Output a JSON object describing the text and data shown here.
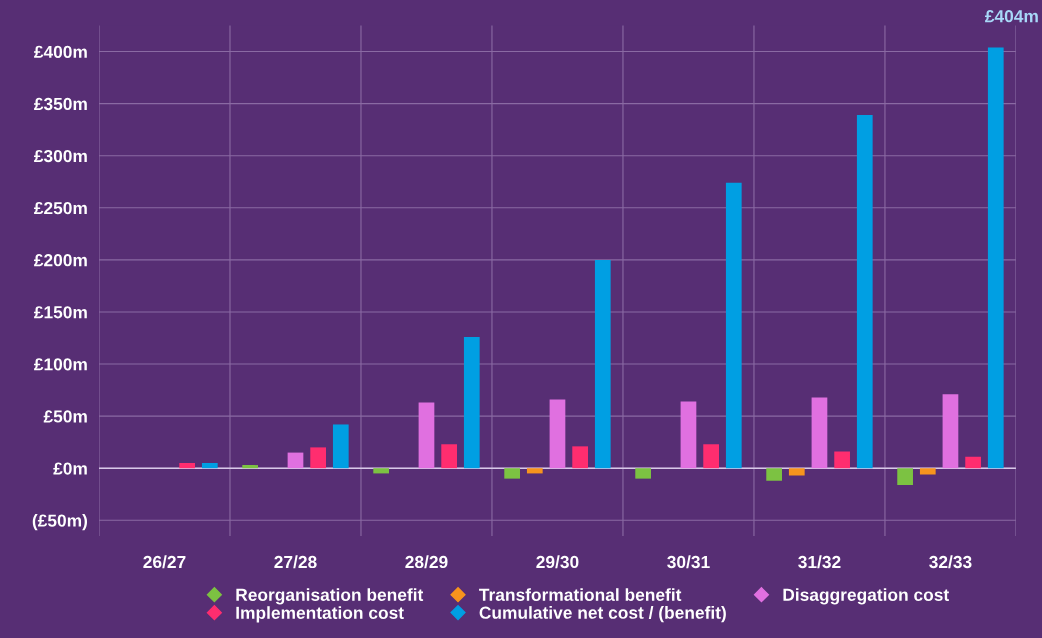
{
  "chart_data": {
    "type": "bar",
    "categories": [
      "26/27",
      "27/28",
      "28/29",
      "29/30",
      "30/31",
      "31/32",
      "32/33"
    ],
    "series": [
      {
        "name": "Reorganisation benefit",
        "color": "#7cc242",
        "values": [
          0,
          3,
          -5,
          -10,
          -10,
          -12,
          -16
        ]
      },
      {
        "name": "Transformational benefit",
        "color": "#f7941d",
        "values": [
          0,
          0,
          0,
          -5,
          0,
          -7,
          -6
        ]
      },
      {
        "name": "Disaggregation cost",
        "color": "#e070e0",
        "values": [
          0,
          15,
          63,
          66,
          64,
          68,
          71
        ]
      },
      {
        "name": "Implementation cost",
        "color": "#ff2d6f",
        "values": [
          5,
          20,
          23,
          21,
          23,
          16,
          11
        ]
      },
      {
        "name": "Cumulative net cost / (benefit)",
        "color": "#009fe3",
        "values": [
          5,
          42,
          126,
          200,
          274,
          339,
          404
        ]
      }
    ],
    "ylim": [
      -65,
      425
    ],
    "yticks": [
      {
        "value": -50,
        "label": "(£50m)"
      },
      {
        "value": 0,
        "label": "£0m"
      },
      {
        "value": 50,
        "label": "£50m"
      },
      {
        "value": 100,
        "label": "£100m"
      },
      {
        "value": 150,
        "label": "£150m"
      },
      {
        "value": 200,
        "label": "£200m"
      },
      {
        "value": 250,
        "label": "£250m"
      },
      {
        "value": 300,
        "label": "£300m"
      },
      {
        "value": 350,
        "label": "£350m"
      },
      {
        "value": 400,
        "label": "£400m"
      }
    ],
    "annotations": [
      "£404m"
    ],
    "grid": true,
    "legend": "bottom"
  }
}
